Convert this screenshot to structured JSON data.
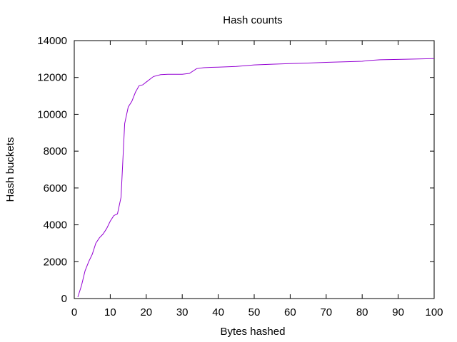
{
  "chart_data": {
    "type": "line",
    "title": "Hash counts",
    "xlabel": "Bytes hashed",
    "ylabel": "Hash buckets",
    "xlim": [
      0,
      100
    ],
    "ylim": [
      0,
      14000
    ],
    "xticks": [
      "0",
      "10",
      "20",
      "30",
      "40",
      "50",
      "60",
      "70",
      "80",
      "90",
      "100"
    ],
    "yticks": [
      "0",
      "2000",
      "4000",
      "6000",
      "8000",
      "10000",
      "12000",
      "14000"
    ],
    "grid": false,
    "legend": "none",
    "series_color": "#9400d3",
    "x": [
      1,
      2,
      3,
      4,
      5,
      6,
      7,
      8,
      9,
      10,
      11,
      12,
      13,
      14,
      15,
      16,
      17,
      18,
      19,
      20,
      22,
      24,
      26,
      28,
      30,
      32,
      34,
      36,
      38,
      40,
      45,
      50,
      55,
      60,
      65,
      70,
      75,
      80,
      82,
      85,
      90,
      100
    ],
    "y": [
      80,
      700,
      1500,
      2000,
      2400,
      3000,
      3300,
      3500,
      3800,
      4200,
      4500,
      4600,
      5500,
      9500,
      10400,
      10700,
      11200,
      11550,
      11600,
      11750,
      12050,
      12150,
      12170,
      12170,
      12170,
      12220,
      12480,
      12530,
      12550,
      12560,
      12600,
      12680,
      12720,
      12750,
      12780,
      12820,
      12850,
      12880,
      12920,
      12960,
      12980,
      13020
    ]
  }
}
